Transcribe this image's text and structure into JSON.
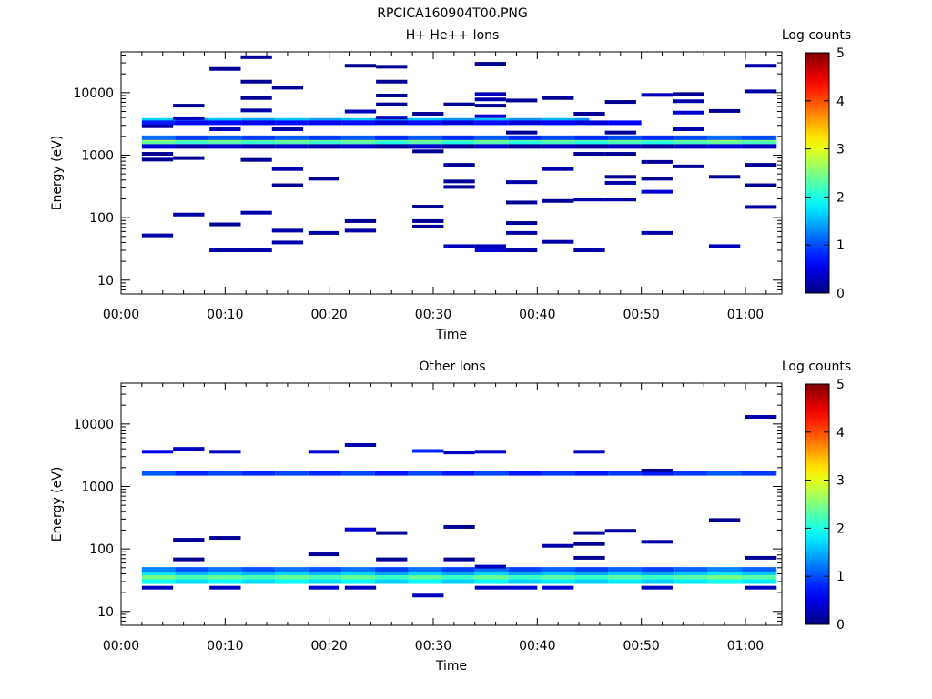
{
  "title": "RPCICA160904T00.PNG",
  "colorbar": {
    "label": "Log counts",
    "ticks": [
      "0",
      "1",
      "2",
      "3",
      "4",
      "5"
    ]
  },
  "chart_data": [
    {
      "type": "heatmap",
      "title": "H+ He++ Ions",
      "xlabel": "Time",
      "ylabel": "Energy (eV)",
      "y_scale": "log",
      "ylim": [
        6,
        45000
      ],
      "xlim": [
        "00:00",
        "01:03:30"
      ],
      "x_ticks": [
        "00:00",
        "00:10",
        "00:20",
        "00:30",
        "00:40",
        "00:50",
        "01:00"
      ],
      "y_ticks": [
        "10",
        "100",
        "1000",
        "10000"
      ],
      "color_range": [
        0,
        5
      ],
      "bands": [
        {
          "start": "00:02",
          "end": "01:03",
          "energy": 1700,
          "log_counts": 2.6
        },
        {
          "start": "00:02",
          "end": "01:03",
          "energy": 1550,
          "log_counts": 2.2
        },
        {
          "start": "00:02",
          "end": "01:03",
          "energy": 1900,
          "log_counts": 1.0
        },
        {
          "start": "00:02",
          "end": "00:45",
          "energy": 3600,
          "log_counts": 1.5
        },
        {
          "start": "00:02",
          "end": "00:50",
          "energy": 3300,
          "log_counts": 0.6
        },
        {
          "start": "00:02",
          "end": "01:03",
          "energy": 1380,
          "log_counts": 0.3
        }
      ],
      "cells": [
        {
          "t": 3.5,
          "e": 52,
          "v": 0.2
        },
        {
          "t": 3.5,
          "e": 2900,
          "v": 0.2
        },
        {
          "t": 3.5,
          "e": 850,
          "v": 0.1
        },
        {
          "t": 3.5,
          "e": 1050,
          "v": 0.1
        },
        {
          "t": 6.5,
          "e": 6200,
          "v": 0.1
        },
        {
          "t": 6.5,
          "e": 112,
          "v": 0.2
        },
        {
          "t": 6.5,
          "e": 900,
          "v": 0.1
        },
        {
          "t": 6.5,
          "e": 3900,
          "v": 0.3
        },
        {
          "t": 10,
          "e": 24000,
          "v": 0.1
        },
        {
          "t": 10,
          "e": 30,
          "v": 0.2
        },
        {
          "t": 10,
          "e": 78,
          "v": 0.1
        },
        {
          "t": 10,
          "e": 2600,
          "v": 0.3
        },
        {
          "t": 13,
          "e": 37000,
          "v": 0.1
        },
        {
          "t": 13,
          "e": 15000,
          "v": 0.1
        },
        {
          "t": 13,
          "e": 8200,
          "v": 0.1
        },
        {
          "t": 13,
          "e": 5200,
          "v": 0.2
        },
        {
          "t": 13,
          "e": 120,
          "v": 0.2
        },
        {
          "t": 13,
          "e": 30,
          "v": 0.2
        },
        {
          "t": 13,
          "e": 840,
          "v": 0.1
        },
        {
          "t": 16,
          "e": 12000,
          "v": 0.1
        },
        {
          "t": 16,
          "e": 2600,
          "v": 0.2
        },
        {
          "t": 16,
          "e": 600,
          "v": 0.2
        },
        {
          "t": 16,
          "e": 330,
          "v": 0.1
        },
        {
          "t": 16,
          "e": 62,
          "v": 0.2
        },
        {
          "t": 16,
          "e": 40,
          "v": 0.2
        },
        {
          "t": 19.5,
          "e": 57,
          "v": 0.2
        },
        {
          "t": 19.5,
          "e": 420,
          "v": 0.1
        },
        {
          "t": 23,
          "e": 27000,
          "v": 0.1
        },
        {
          "t": 23,
          "e": 5000,
          "v": 0.3
        },
        {
          "t": 23,
          "e": 88,
          "v": 0.1
        },
        {
          "t": 23,
          "e": 62,
          "v": 0.2
        },
        {
          "t": 26,
          "e": 26000,
          "v": 0.1
        },
        {
          "t": 26,
          "e": 15000,
          "v": 0.1
        },
        {
          "t": 26,
          "e": 9000,
          "v": 0.1
        },
        {
          "t": 26,
          "e": 6500,
          "v": 0.1
        },
        {
          "t": 26,
          "e": 4000,
          "v": 0.3
        },
        {
          "t": 29.5,
          "e": 4600,
          "v": 0.1
        },
        {
          "t": 29.5,
          "e": 1150,
          "v": 0.1
        },
        {
          "t": 29.5,
          "e": 150,
          "v": 0.1
        },
        {
          "t": 29.5,
          "e": 88,
          "v": 0.1
        },
        {
          "t": 29.5,
          "e": 72,
          "v": 0.1
        },
        {
          "t": 32.5,
          "e": 6500,
          "v": 0.1
        },
        {
          "t": 32.5,
          "e": 700,
          "v": 0.1
        },
        {
          "t": 32.5,
          "e": 380,
          "v": 0.1
        },
        {
          "t": 32.5,
          "e": 310,
          "v": 0.1
        },
        {
          "t": 32.5,
          "e": 35,
          "v": 0.3
        },
        {
          "t": 35.5,
          "e": 29000,
          "v": 0.1
        },
        {
          "t": 35.5,
          "e": 9500,
          "v": 0.3
        },
        {
          "t": 35.5,
          "e": 7800,
          "v": 0.2
        },
        {
          "t": 35.5,
          "e": 6200,
          "v": 0.1
        },
        {
          "t": 35.5,
          "e": 4200,
          "v": 0.4
        },
        {
          "t": 35.5,
          "e": 30,
          "v": 0.4
        },
        {
          "t": 35.5,
          "e": 35,
          "v": 0.3
        },
        {
          "t": 38.5,
          "e": 7500,
          "v": 0.1
        },
        {
          "t": 38.5,
          "e": 370,
          "v": 0.2
        },
        {
          "t": 38.5,
          "e": 175,
          "v": 0.1
        },
        {
          "t": 38.5,
          "e": 82,
          "v": 0.1
        },
        {
          "t": 38.5,
          "e": 57,
          "v": 0.2
        },
        {
          "t": 38.5,
          "e": 30,
          "v": 0.2
        },
        {
          "t": 38.5,
          "e": 2300,
          "v": 0.1
        },
        {
          "t": 42,
          "e": 8200,
          "v": 0.1
        },
        {
          "t": 42,
          "e": 600,
          "v": 0.2
        },
        {
          "t": 42,
          "e": 185,
          "v": 0.1
        },
        {
          "t": 42,
          "e": 41,
          "v": 0.2
        },
        {
          "t": 45,
          "e": 4600,
          "v": 0.1
        },
        {
          "t": 45,
          "e": 1050,
          "v": 0.1
        },
        {
          "t": 45,
          "e": 195,
          "v": 0.2
        },
        {
          "t": 45,
          "e": 30,
          "v": 0.2
        },
        {
          "t": 48,
          "e": 7100,
          "v": 0.1
        },
        {
          "t": 48,
          "e": 1050,
          "v": 0.1
        },
        {
          "t": 48,
          "e": 450,
          "v": 0.1
        },
        {
          "t": 48,
          "e": 360,
          "v": 0.2
        },
        {
          "t": 48,
          "e": 195,
          "v": 0.2
        },
        {
          "t": 48,
          "e": 2300,
          "v": 0.1
        },
        {
          "t": 51.5,
          "e": 9200,
          "v": 0.3
        },
        {
          "t": 51.5,
          "e": 780,
          "v": 0.1
        },
        {
          "t": 51.5,
          "e": 420,
          "v": 0.1
        },
        {
          "t": 51.5,
          "e": 260,
          "v": 0.4
        },
        {
          "t": 51.5,
          "e": 57,
          "v": 0.2
        },
        {
          "t": 54.5,
          "e": 9500,
          "v": 0.1
        },
        {
          "t": 54.5,
          "e": 7300,
          "v": 0.2
        },
        {
          "t": 54.5,
          "e": 4800,
          "v": 0.4
        },
        {
          "t": 54.5,
          "e": 2600,
          "v": 0.2
        },
        {
          "t": 54.5,
          "e": 660,
          "v": 0.1
        },
        {
          "t": 58,
          "e": 5100,
          "v": 0.1
        },
        {
          "t": 58,
          "e": 450,
          "v": 0.1
        },
        {
          "t": 58,
          "e": 35,
          "v": 0.3
        },
        {
          "t": 61.5,
          "e": 27000,
          "v": 0.2
        },
        {
          "t": 61.5,
          "e": 10500,
          "v": 0.2
        },
        {
          "t": 61.5,
          "e": 700,
          "v": 0.1
        },
        {
          "t": 61.5,
          "e": 330,
          "v": 0.1
        },
        {
          "t": 61.5,
          "e": 148,
          "v": 0.2
        }
      ]
    },
    {
      "type": "heatmap",
      "title": "Other Ions",
      "xlabel": "Time",
      "ylabel": "Energy (eV)",
      "y_scale": "log",
      "ylim": [
        6,
        45000
      ],
      "xlim": [
        "00:00",
        "01:03:30"
      ],
      "x_ticks": [
        "00:00",
        "00:10",
        "00:20",
        "00:30",
        "00:40",
        "00:50",
        "01:00"
      ],
      "y_ticks": [
        "10",
        "100",
        "1000",
        "10000"
      ],
      "color_range": [
        0,
        5
      ],
      "bands": [
        {
          "start": "00:02",
          "end": "01:03",
          "energy": 1620,
          "log_counts": 0.9
        },
        {
          "start": "00:02",
          "end": "01:03",
          "energy": 47,
          "log_counts": 1.1
        },
        {
          "start": "00:02",
          "end": "01:03",
          "energy": 40,
          "log_counts": 1.6
        },
        {
          "start": "00:02",
          "end": "01:03",
          "energy": 35,
          "log_counts": 2.3
        },
        {
          "start": "00:02",
          "end": "01:03",
          "energy": 30,
          "log_counts": 1.8
        }
      ],
      "cells": [
        {
          "t": 3.5,
          "e": 3600,
          "v": 0.6
        },
        {
          "t": 3.5,
          "e": 24,
          "v": 0.3
        },
        {
          "t": 6.5,
          "e": 4000,
          "v": 0.3
        },
        {
          "t": 6.5,
          "e": 140,
          "v": 0.1
        },
        {
          "t": 6.5,
          "e": 68,
          "v": 0.1
        },
        {
          "t": 10,
          "e": 3600,
          "v": 0.3
        },
        {
          "t": 10,
          "e": 150,
          "v": 0.1
        },
        {
          "t": 10,
          "e": 24,
          "v": 0.3
        },
        {
          "t": 19.5,
          "e": 3600,
          "v": 0.4
        },
        {
          "t": 19.5,
          "e": 82,
          "v": 0.1
        },
        {
          "t": 19.5,
          "e": 24,
          "v": 0.4
        },
        {
          "t": 23,
          "e": 4600,
          "v": 0.2
        },
        {
          "t": 23,
          "e": 205,
          "v": 0.4
        },
        {
          "t": 23,
          "e": 24,
          "v": 0.3
        },
        {
          "t": 26,
          "e": 180,
          "v": 0.1
        },
        {
          "t": 26,
          "e": 68,
          "v": 0.1
        },
        {
          "t": 29.5,
          "e": 3700,
          "v": 0.8
        },
        {
          "t": 29.5,
          "e": 18,
          "v": 0.3
        },
        {
          "t": 32.5,
          "e": 3500,
          "v": 0.3
        },
        {
          "t": 32.5,
          "e": 225,
          "v": 0.1
        },
        {
          "t": 32.5,
          "e": 68,
          "v": 0.1
        },
        {
          "t": 35.5,
          "e": 3600,
          "v": 0.4
        },
        {
          "t": 35.5,
          "e": 52,
          "v": 0.3
        },
        {
          "t": 35.5,
          "e": 24,
          "v": 0.3
        },
        {
          "t": 38.5,
          "e": 24,
          "v": 0.4
        },
        {
          "t": 42,
          "e": 112,
          "v": 0.2
        },
        {
          "t": 42,
          "e": 24,
          "v": 0.4
        },
        {
          "t": 45,
          "e": 3600,
          "v": 0.3
        },
        {
          "t": 45,
          "e": 180,
          "v": 0.1
        },
        {
          "t": 45,
          "e": 120,
          "v": 0.1
        },
        {
          "t": 45,
          "e": 72,
          "v": 0.1
        },
        {
          "t": 48,
          "e": 195,
          "v": 0.2
        },
        {
          "t": 51.5,
          "e": 1800,
          "v": 0.1
        },
        {
          "t": 51.5,
          "e": 130,
          "v": 0.2
        },
        {
          "t": 51.5,
          "e": 24,
          "v": 0.3
        },
        {
          "t": 58,
          "e": 290,
          "v": 0.1
        },
        {
          "t": 61.5,
          "e": 13000,
          "v": 0.2
        },
        {
          "t": 61.5,
          "e": 72,
          "v": 0.1
        },
        {
          "t": 61.5,
          "e": 24,
          "v": 0.3
        }
      ]
    }
  ]
}
